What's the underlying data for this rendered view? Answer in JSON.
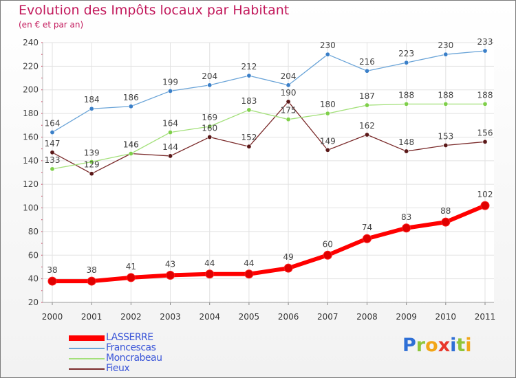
{
  "title": "Evolution des Impôts locaux par Habitant",
  "subtitle": "(en € et par an)",
  "logo": {
    "letters": [
      {
        "ch": "P",
        "color": "#2e6fd6"
      },
      {
        "ch": "r",
        "color": "#8fc53a"
      },
      {
        "ch": "o",
        "color": "#f2a516"
      },
      {
        "ch": "x",
        "color": "#e8372b"
      },
      {
        "ch": "i",
        "color": "#2e6fd6"
      },
      {
        "ch": "t",
        "color": "#8fc53a"
      },
      {
        "ch": "i",
        "color": "#f2a516"
      }
    ]
  },
  "chart_data": {
    "type": "line",
    "categories": [
      "2000",
      "2001",
      "2002",
      "2003",
      "2004",
      "2005",
      "2006",
      "2007",
      "2008",
      "2009",
      "2010",
      "2011"
    ],
    "ylim": [
      20,
      240
    ],
    "yticks": [
      20,
      40,
      60,
      80,
      100,
      120,
      140,
      160,
      180,
      200,
      220,
      240
    ],
    "grid": true,
    "legend_position": "bottom-left",
    "series": [
      {
        "name": "LASSERRE",
        "color": "#ff0000",
        "marker": "#e00000",
        "values": [
          38,
          38,
          41,
          43,
          44,
          44,
          49,
          60,
          74,
          83,
          88,
          102
        ]
      },
      {
        "name": "Francescas",
        "color": "#6aa4d8",
        "marker": "#3a7fc8",
        "values": [
          164,
          184,
          186,
          199,
          204,
          212,
          204,
          230,
          216,
          223,
          230,
          233
        ]
      },
      {
        "name": "Moncrabeau",
        "color": "#a3e07a",
        "marker": "#7fcf4a",
        "values": [
          133,
          139,
          146,
          164,
          169,
          183,
          175,
          180,
          187,
          188,
          188,
          188
        ]
      },
      {
        "name": "Fieux",
        "color": "#7a2a2a",
        "marker": "#5a1818",
        "values": [
          147,
          129,
          146,
          144,
          160,
          152,
          190,
          149,
          162,
          148,
          153,
          156
        ]
      }
    ]
  }
}
